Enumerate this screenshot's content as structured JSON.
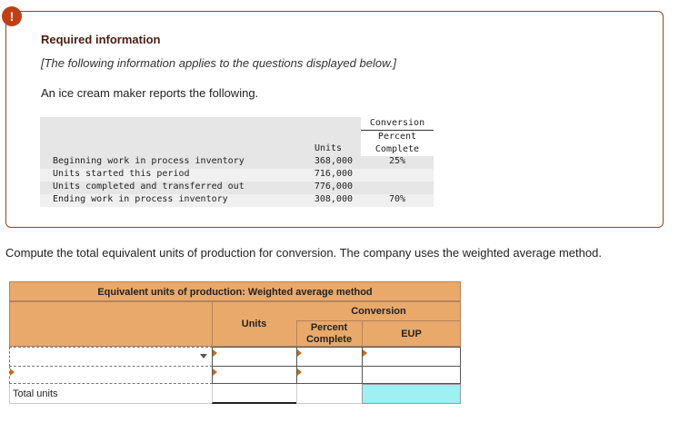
{
  "alert": {
    "icon": "exclamation-icon",
    "symbol": "!"
  },
  "header": {
    "title": "Required information",
    "note": "[The following information applies to the questions displayed below.]",
    "intro": "An ice cream maker reports the following."
  },
  "data_table": {
    "conversion_header": "Conversion",
    "percent_header": "Percent",
    "complete_header": "Complete",
    "units_header": "Units",
    "rows": [
      {
        "label": "Beginning work in process inventory",
        "units": "368,000",
        "percent": "25%"
      },
      {
        "label": "Units started this period",
        "units": "716,000",
        "percent": ""
      },
      {
        "label": "Units completed and transferred out",
        "units": "776,000",
        "percent": ""
      },
      {
        "label": "Ending work in process inventory",
        "units": "308,000",
        "percent": "70%"
      }
    ]
  },
  "question": "Compute the total equivalent units of production for conversion. The company uses the weighted average method.",
  "eup_table": {
    "title": "Equivalent units of production: Weighted average method",
    "conversion_label": "Conversion",
    "units_label": "Units",
    "percent_label": "Percent",
    "complete_label": "Complete",
    "eup_label": "EUP",
    "total_label": "Total units"
  },
  "colors": {
    "accent": "#e9a96a",
    "highlight": "#9ef0f3",
    "alert": "#c43d12",
    "border": "#8a4a2a"
  }
}
